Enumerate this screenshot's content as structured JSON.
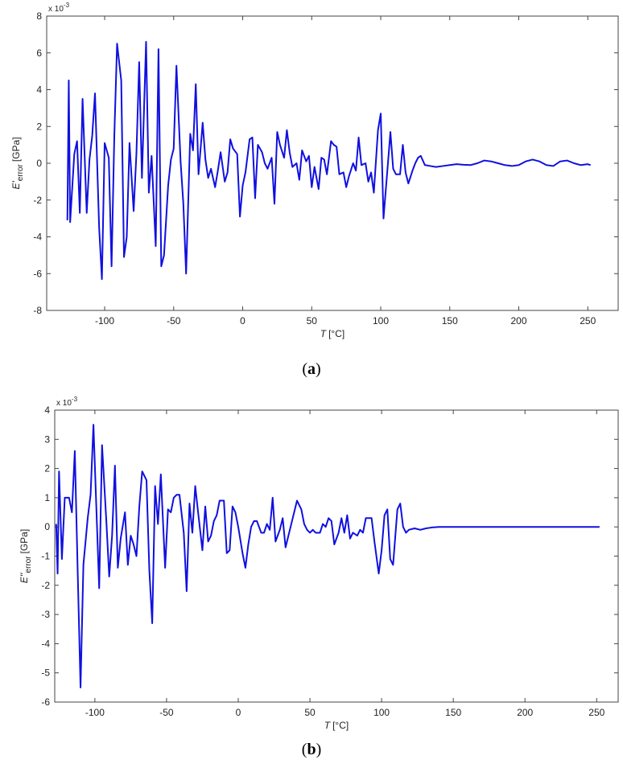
{
  "chart_data": [
    {
      "type": "line",
      "caption": [
        "(",
        "a",
        ")"
      ],
      "multiplier": [
        "x 10",
        "-3"
      ],
      "ylabel": [
        "E'",
        "error",
        "[GPa]"
      ],
      "xlabel": [
        "T",
        "[°C]"
      ],
      "color": "#1010e0",
      "xlim": [
        -142,
        272
      ],
      "ylim": [
        -8,
        8
      ],
      "xticks": [
        -100,
        -50,
        0,
        50,
        100,
        150,
        200,
        250
      ],
      "yticks": [
        -8,
        -6,
        -4,
        -2,
        0,
        2,
        4,
        6,
        8
      ],
      "x": [
        -127,
        -126,
        -125,
        -122,
        -120,
        -118,
        -116,
        -113,
        -111,
        -109,
        -107,
        -104,
        -102,
        -100,
        -97,
        -95,
        -93,
        -91,
        -88,
        -86,
        -84,
        -82,
        -79,
        -77,
        -75,
        -73,
        -70,
        -68,
        -66,
        -63,
        -61,
        -59,
        -57,
        -54,
        -52,
        -50,
        -48,
        -45,
        -43,
        -41,
        -38,
        -36,
        -34,
        -32,
        -29,
        -27,
        -25,
        -23,
        -20,
        -18,
        -16,
        -13,
        -11,
        -9,
        -7,
        -4,
        -2,
        0,
        2,
        5,
        7,
        9,
        11,
        14,
        16,
        18,
        21,
        23,
        25,
        27,
        30,
        32,
        34,
        36,
        39,
        41,
        43,
        46,
        48,
        50,
        52,
        55,
        57,
        59,
        61,
        64,
        66,
        68,
        70,
        73,
        75,
        77,
        80,
        82,
        84,
        86,
        89,
        91,
        93,
        95,
        98,
        100,
        102,
        105,
        107,
        109,
        111,
        114,
        116,
        118,
        120,
        123,
        125,
        127,
        129,
        132,
        136,
        140,
        145,
        150,
        155,
        160,
        165,
        170,
        175,
        180,
        185,
        190,
        195,
        200,
        205,
        210,
        215,
        220,
        225,
        230,
        235,
        240,
        245,
        250,
        252
      ],
      "values": [
        -3.1,
        4.5,
        -3.2,
        0.5,
        1.2,
        -2.7,
        3.5,
        -2.7,
        0.2,
        1.5,
        3.8,
        -3.5,
        -6.3,
        1.1,
        0.3,
        -5.6,
        1.5,
        6.5,
        4.5,
        -5.1,
        -4.0,
        1.1,
        -2.6,
        0.5,
        5.5,
        -0.8,
        6.6,
        -1.6,
        0.4,
        -4.5,
        6.2,
        -5.6,
        -5.0,
        -1.2,
        0.2,
        0.8,
        5.3,
        0.1,
        -2.2,
        -6.0,
        1.6,
        0.7,
        4.3,
        -0.6,
        2.2,
        0.2,
        -0.8,
        -0.3,
        -1.3,
        -0.4,
        0.6,
        -1.0,
        -0.5,
        1.3,
        0.8,
        0.5,
        -2.9,
        -1.2,
        -0.5,
        1.3,
        1.4,
        -1.9,
        1.0,
        0.6,
        0.0,
        -0.3,
        0.3,
        -2.2,
        1.7,
        1.0,
        0.3,
        1.8,
        0.6,
        -0.2,
        0.0,
        -0.9,
        0.7,
        0.1,
        0.4,
        -1.3,
        -0.2,
        -1.4,
        0.3,
        0.2,
        -0.6,
        1.2,
        1.0,
        0.9,
        -0.6,
        -0.5,
        -1.3,
        -0.7,
        0.0,
        -0.4,
        1.4,
        -0.1,
        0.0,
        -1.0,
        -0.5,
        -1.6,
        1.8,
        2.7,
        -3.0,
        -0.2,
        1.7,
        -0.3,
        -0.6,
        -0.6,
        1.0,
        -0.5,
        -1.1,
        -0.4,
        0.0,
        0.3,
        0.4,
        -0.1,
        -0.15,
        -0.2,
        -0.15,
        -0.1,
        -0.05,
        -0.08,
        -0.1,
        0.0,
        0.15,
        0.1,
        0.0,
        -0.1,
        -0.15,
        -0.1,
        0.1,
        0.2,
        0.1,
        -0.1,
        -0.15,
        0.1,
        0.15,
        0.0,
        -0.1,
        -0.05,
        -0.1
      ]
    },
    {
      "type": "line",
      "caption": [
        "(",
        "b",
        ")"
      ],
      "multiplier": [
        "x 10",
        "-3"
      ],
      "ylabel": [
        "E''",
        "error",
        "[GPa]"
      ],
      "xlabel": [
        "T",
        "[°C]"
      ],
      "color": "#1010e0",
      "xlim": [
        -128,
        265
      ],
      "ylim": [
        -6,
        4
      ],
      "xticks": [
        -100,
        -50,
        0,
        50,
        100,
        150,
        200,
        250
      ],
      "yticks": [
        -6,
        -5,
        -4,
        -3,
        -2,
        -1,
        0,
        1,
        2,
        3,
        4
      ],
      "x": [
        -127,
        -126,
        -125,
        -123,
        -121,
        -118,
        -116,
        -114,
        -112,
        -110,
        -108,
        -105,
        -103,
        -101,
        -99,
        -97,
        -95,
        -92,
        -90,
        -88,
        -86,
        -84,
        -82,
        -79,
        -77,
        -75,
        -73,
        -71,
        -69,
        -67,
        -64,
        -62,
        -60,
        -58,
        -56,
        -54,
        -51,
        -49,
        -47,
        -45,
        -43,
        -41,
        -38,
        -36,
        -34,
        -32,
        -30,
        -28,
        -25,
        -23,
        -21,
        -19,
        -17,
        -15,
        -13,
        -10,
        -8,
        -6,
        -4,
        -2,
        0,
        3,
        5,
        7,
        9,
        11,
        13,
        16,
        18,
        20,
        22,
        24,
        26,
        29,
        31,
        33,
        35,
        37,
        39,
        41,
        44,
        46,
        48,
        50,
        52,
        54,
        57,
        59,
        61,
        63,
        65,
        67,
        70,
        72,
        74,
        76,
        78,
        80,
        83,
        85,
        87,
        89,
        91,
        93,
        95,
        98,
        100,
        102,
        104,
        106,
        108,
        111,
        113,
        115,
        117,
        119,
        123,
        127,
        131,
        135,
        140,
        150,
        160,
        170,
        180,
        190,
        200,
        210,
        220,
        230,
        240,
        252
      ],
      "values": [
        0.1,
        -1.6,
        1.9,
        -1.1,
        1.0,
        1.0,
        0.5,
        2.6,
        -1.5,
        -5.5,
        -1.3,
        0.3,
        1.1,
        3.5,
        0.7,
        -2.1,
        2.8,
        0.2,
        -1.7,
        -0.3,
        2.1,
        -1.4,
        -0.4,
        0.5,
        -1.3,
        -0.3,
        -0.6,
        -1.0,
        0.7,
        1.9,
        1.6,
        -1.5,
        -3.3,
        1.4,
        0.1,
        1.8,
        -1.4,
        0.6,
        0.5,
        1.0,
        1.1,
        1.1,
        -0.2,
        -2.2,
        0.8,
        -0.2,
        1.4,
        0.5,
        -0.8,
        0.7,
        -0.5,
        -0.3,
        0.2,
        0.4,
        0.9,
        0.9,
        -0.9,
        -0.8,
        0.7,
        0.5,
        0.0,
        -0.9,
        -1.4,
        -0.6,
        0.0,
        0.2,
        0.2,
        -0.2,
        -0.2,
        0.1,
        -0.1,
        1.0,
        -0.5,
        -0.1,
        0.3,
        -0.7,
        -0.3,
        0.1,
        0.5,
        0.9,
        0.6,
        0.1,
        -0.1,
        -0.2,
        -0.1,
        -0.2,
        -0.2,
        0.1,
        0.0,
        0.3,
        0.2,
        -0.6,
        -0.2,
        0.3,
        -0.2,
        0.4,
        -0.4,
        -0.2,
        -0.3,
        -0.1,
        -0.2,
        0.3,
        0.3,
        0.3,
        -0.5,
        -1.6,
        -0.8,
        0.4,
        0.6,
        -1.1,
        -1.3,
        0.6,
        0.8,
        0.0,
        -0.2,
        -0.1,
        -0.05,
        -0.1,
        -0.05,
        -0.02,
        0.0,
        0.0,
        0.0,
        0.0,
        0.0,
        0.0,
        0.0,
        0.0,
        0.0,
        0.0,
        0.0,
        0.0
      ]
    }
  ]
}
